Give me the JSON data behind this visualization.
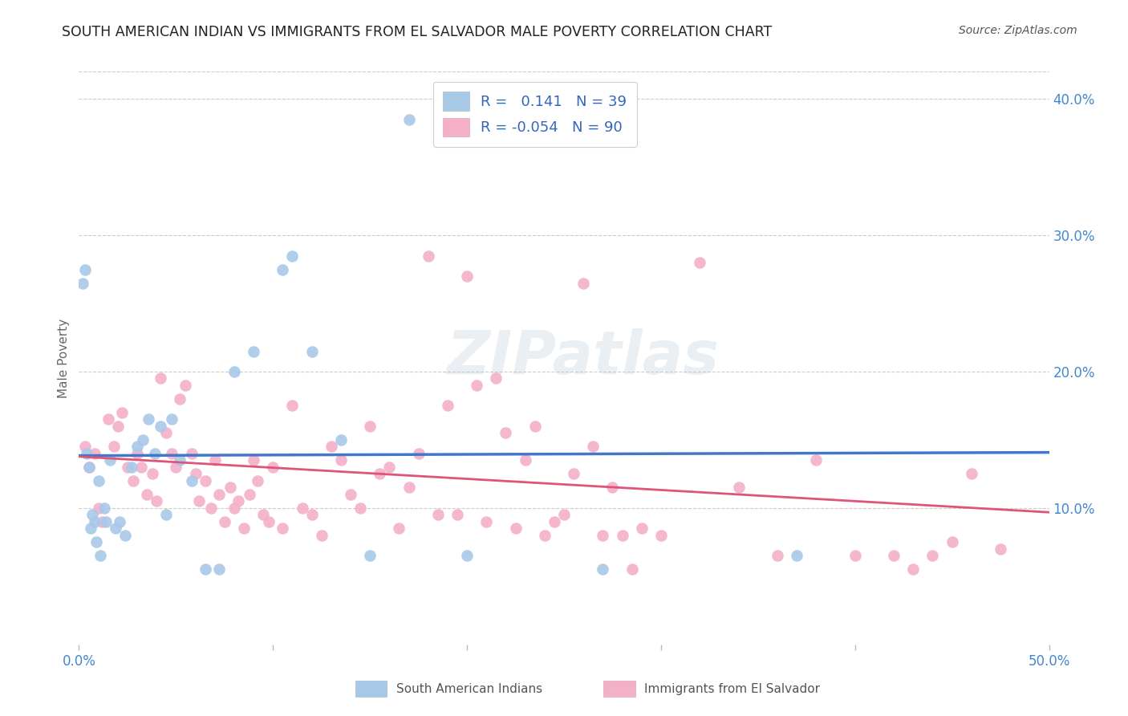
{
  "title": "SOUTH AMERICAN INDIAN VS IMMIGRANTS FROM EL SALVADOR MALE POVERTY CORRELATION CHART",
  "source": "Source: ZipAtlas.com",
  "ylabel": "Male Poverty",
  "background_color": "#ffffff",
  "grid_color": "#cccccc",
  "watermark": "ZIPatlas",
  "series1": {
    "label": "South American Indians",
    "color": "#a8c8e8",
    "line_color": "#4477cc",
    "R": 0.141,
    "N": 39,
    "x": [
      0.4,
      0.7,
      1.0,
      1.3,
      1.6,
      1.9,
      2.1,
      2.4,
      2.7,
      3.0,
      3.3,
      3.6,
      3.9,
      4.2,
      4.5,
      4.8,
      5.2,
      5.8,
      6.5,
      7.2,
      8.0,
      9.0,
      10.5,
      11.0,
      12.0,
      13.5,
      15.0,
      17.0,
      20.0,
      27.0,
      37.0,
      0.2,
      0.3,
      0.5,
      0.6,
      0.8,
      0.9,
      1.1,
      1.4
    ],
    "y": [
      14.0,
      9.5,
      12.0,
      10.0,
      13.5,
      8.5,
      9.0,
      8.0,
      13.0,
      14.5,
      15.0,
      16.5,
      14.0,
      16.0,
      9.5,
      16.5,
      13.5,
      12.0,
      5.5,
      5.5,
      20.0,
      21.5,
      27.5,
      28.5,
      21.5,
      15.0,
      6.5,
      38.5,
      6.5,
      5.5,
      6.5,
      26.5,
      27.5,
      13.0,
      8.5,
      9.0,
      7.5,
      6.5,
      9.0
    ]
  },
  "series2": {
    "label": "Immigrants from El Salvador",
    "color": "#f4b0c8",
    "line_color": "#dd5577",
    "R": -0.054,
    "N": 90,
    "x": [
      0.3,
      0.5,
      0.8,
      1.0,
      1.2,
      1.5,
      1.8,
      2.0,
      2.2,
      2.5,
      2.8,
      3.0,
      3.2,
      3.5,
      3.8,
      4.0,
      4.2,
      4.5,
      4.8,
      5.0,
      5.2,
      5.5,
      5.8,
      6.0,
      6.2,
      6.5,
      6.8,
      7.0,
      7.2,
      7.5,
      7.8,
      8.0,
      8.2,
      8.5,
      8.8,
      9.0,
      9.2,
      9.5,
      9.8,
      10.0,
      10.5,
      11.0,
      11.5,
      12.0,
      12.5,
      13.0,
      13.5,
      14.0,
      14.5,
      15.0,
      15.5,
      16.0,
      16.5,
      17.0,
      17.5,
      18.0,
      18.5,
      19.0,
      19.5,
      20.0,
      20.5,
      21.0,
      21.5,
      22.0,
      22.5,
      23.0,
      23.5,
      24.0,
      24.5,
      25.0,
      25.5,
      26.0,
      26.5,
      27.0,
      27.5,
      28.0,
      28.5,
      29.0,
      30.0,
      32.0,
      34.0,
      36.0,
      38.0,
      40.0,
      42.0,
      43.0,
      44.0,
      45.0,
      46.0,
      47.5
    ],
    "y": [
      14.5,
      13.0,
      14.0,
      10.0,
      9.0,
      16.5,
      14.5,
      16.0,
      17.0,
      13.0,
      12.0,
      14.0,
      13.0,
      11.0,
      12.5,
      10.5,
      19.5,
      15.5,
      14.0,
      13.0,
      18.0,
      19.0,
      14.0,
      12.5,
      10.5,
      12.0,
      10.0,
      13.5,
      11.0,
      9.0,
      11.5,
      10.0,
      10.5,
      8.5,
      11.0,
      13.5,
      12.0,
      9.5,
      9.0,
      13.0,
      8.5,
      17.5,
      10.0,
      9.5,
      8.0,
      14.5,
      13.5,
      11.0,
      10.0,
      16.0,
      12.5,
      13.0,
      8.5,
      11.5,
      14.0,
      28.5,
      9.5,
      17.5,
      9.5,
      27.0,
      19.0,
      9.0,
      19.5,
      15.5,
      8.5,
      13.5,
      16.0,
      8.0,
      9.0,
      9.5,
      12.5,
      26.5,
      14.5,
      8.0,
      11.5,
      8.0,
      5.5,
      8.5,
      8.0,
      28.0,
      11.5,
      6.5,
      13.5,
      6.5,
      6.5,
      5.5,
      6.5,
      7.5,
      12.5,
      7.0
    ]
  },
  "xlim": [
    0,
    50
  ],
  "ylim": [
    0,
    42
  ],
  "ytick_vals": [
    10,
    20,
    30,
    40
  ],
  "ytick_labels": [
    "10.0%",
    "20.0%",
    "30.0%",
    "40.0%"
  ],
  "xtick_labels_left": "0.0%",
  "xtick_labels_right": "50.0%",
  "title_color": "#222222",
  "source_color": "#555555",
  "axis_label_color": "#4488cc",
  "legend_text_color": "#3366bb"
}
